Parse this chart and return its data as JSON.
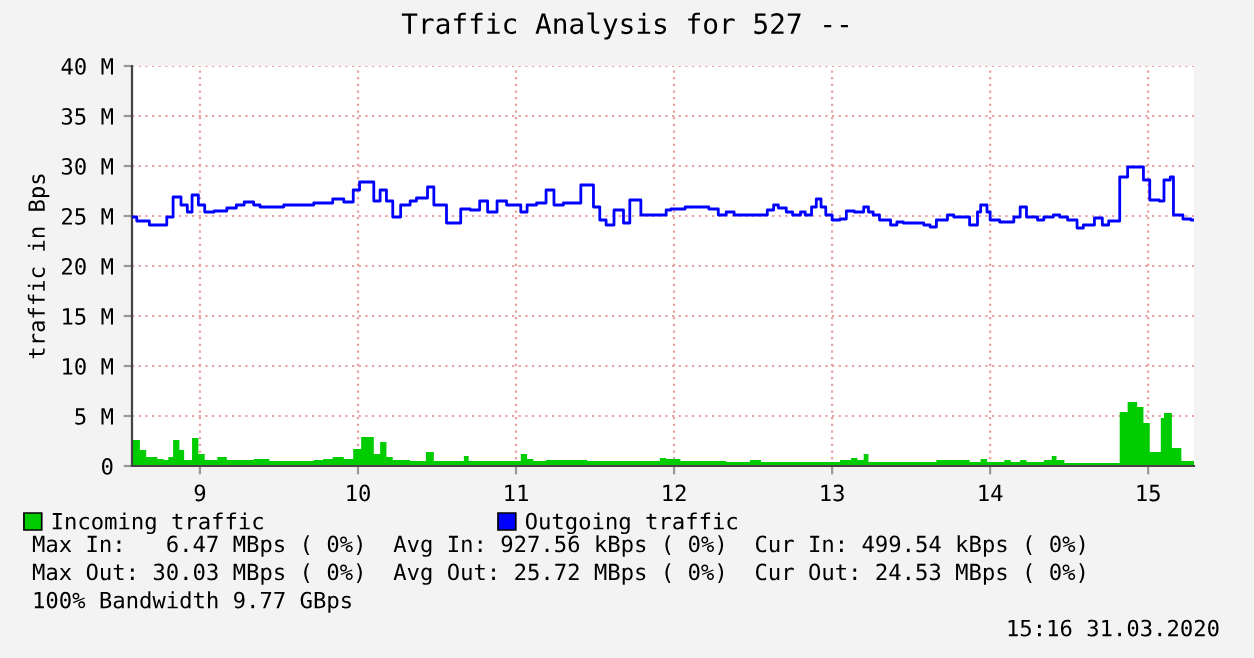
{
  "chart_data": {
    "type": "step",
    "title": "Traffic Analysis for 527 --",
    "ylabel": "traffic in Bps",
    "xlim": [
      8.57,
      15.29
    ],
    "xticks": [
      9,
      10,
      11,
      12,
      13,
      14,
      15
    ],
    "ylim": [
      0,
      40
    ],
    "yticks": [
      0,
      {
        "value": 5,
        "label": "5 M"
      },
      {
        "value": 10,
        "label": "10 M"
      },
      {
        "value": 15,
        "label": "15 M"
      },
      {
        "value": 20,
        "label": "20 M"
      },
      {
        "value": 25,
        "label": "25 M"
      },
      {
        "value": 30,
        "label": "30 M"
      },
      {
        "value": 35,
        "label": "35 M"
      },
      {
        "value": 40,
        "label": "40 M"
      }
    ],
    "grid": true,
    "legend": "bottom",
    "series": [
      {
        "name": "Incoming traffic",
        "type": "area",
        "color": "#00cc00",
        "x": [
          8.57,
          8.62,
          8.66,
          8.73,
          8.77,
          8.8,
          8.83,
          8.87,
          8.9,
          8.95,
          8.99,
          9.03,
          9.11,
          9.17,
          9.34,
          9.44,
          9.72,
          9.78,
          9.84,
          9.91,
          9.97,
          10.02,
          10.1,
          10.14,
          10.18,
          10.22,
          10.33,
          10.43,
          10.48,
          10.67,
          10.7,
          11.03,
          11.07,
          11.11,
          11.19,
          11.45,
          11.74,
          11.91,
          11.95,
          12.04,
          12.33,
          12.48,
          12.55,
          13.05,
          13.12,
          13.16,
          13.2,
          13.23,
          13.66,
          13.87,
          13.94,
          13.98,
          14.09,
          14.13,
          14.19,
          14.23,
          14.34,
          14.39,
          14.42,
          14.47,
          14.82,
          14.87,
          14.93,
          14.97,
          15.01,
          15.08,
          15.1,
          15.15,
          15.21,
          15.29
        ],
        "values": [
          2.6,
          1.6,
          0.9,
          0.7,
          0.6,
          0.9,
          2.6,
          1.6,
          0.6,
          2.8,
          1.2,
          0.6,
          0.9,
          0.6,
          0.7,
          0.5,
          0.6,
          0.7,
          0.9,
          0.7,
          1.7,
          2.9,
          1.2,
          2.4,
          0.9,
          0.6,
          0.5,
          1.4,
          0.5,
          1.0,
          0.5,
          1.2,
          0.7,
          0.5,
          0.6,
          0.5,
          0.5,
          0.8,
          0.7,
          0.5,
          0.4,
          0.6,
          0.4,
          0.6,
          0.8,
          0.6,
          1.2,
          0.4,
          0.6,
          0.4,
          0.7,
          0.4,
          0.6,
          0.4,
          0.6,
          0.4,
          0.6,
          1.0,
          0.6,
          0.3,
          5.4,
          6.4,
          5.9,
          4.3,
          1.4,
          4.8,
          5.3,
          1.8,
          0.5,
          0.5
        ]
      },
      {
        "name": "Outgoing traffic",
        "color": "#0000ff",
        "x": [
          8.57,
          8.6,
          8.68,
          8.79,
          8.83,
          8.88,
          8.92,
          8.95,
          8.99,
          9.03,
          9.09,
          9.17,
          9.23,
          9.28,
          9.34,
          9.38,
          9.53,
          9.72,
          9.84,
          9.91,
          9.97,
          10.01,
          10.1,
          10.14,
          10.18,
          10.22,
          10.27,
          10.33,
          10.37,
          10.44,
          10.48,
          10.56,
          10.65,
          10.71,
          10.77,
          10.82,
          10.88,
          10.94,
          11.03,
          11.07,
          11.13,
          11.19,
          11.24,
          11.3,
          11.41,
          11.49,
          11.53,
          11.57,
          11.62,
          11.68,
          11.72,
          11.79,
          11.95,
          11.98,
          12.07,
          12.22,
          12.28,
          12.33,
          12.38,
          12.59,
          12.63,
          12.66,
          12.71,
          12.75,
          12.8,
          12.83,
          12.87,
          12.9,
          12.93,
          12.96,
          13.0,
          13.05,
          13.09,
          13.14,
          13.2,
          13.23,
          13.26,
          13.3,
          13.37,
          13.41,
          13.45,
          13.58,
          13.62,
          13.66,
          13.73,
          13.77,
          13.87,
          13.92,
          13.94,
          13.98,
          14.0,
          14.06,
          14.15,
          14.19,
          14.23,
          14.3,
          14.34,
          14.4,
          14.44,
          14.49,
          14.55,
          14.59,
          14.66,
          14.71,
          14.75,
          14.82,
          14.87,
          14.97,
          15.01,
          15.07,
          15.1,
          15.14,
          15.16,
          15.22,
          15.27,
          15.29
        ],
        "values": [
          24.9,
          24.5,
          24.1,
          24.9,
          26.9,
          26.1,
          25.4,
          27.1,
          26.1,
          25.4,
          25.5,
          25.8,
          26.1,
          26.4,
          26.1,
          25.9,
          26.1,
          26.3,
          26.7,
          26.4,
          27.6,
          28.4,
          26.5,
          27.6,
          26.5,
          24.9,
          26.1,
          26.5,
          26.8,
          27.9,
          26.1,
          24.3,
          25.7,
          25.6,
          26.5,
          25.4,
          26.5,
          26.1,
          25.4,
          26.1,
          26.3,
          27.6,
          26.1,
          26.3,
          28.1,
          25.9,
          24.6,
          24.1,
          25.6,
          24.3,
          26.6,
          25.1,
          25.6,
          25.7,
          25.9,
          25.7,
          25.1,
          25.4,
          25.1,
          25.6,
          26.1,
          25.8,
          25.4,
          25.1,
          25.4,
          25.1,
          25.9,
          26.7,
          25.9,
          25.1,
          24.6,
          24.7,
          25.5,
          25.4,
          25.9,
          25.4,
          25.1,
          24.6,
          24.1,
          24.4,
          24.3,
          24.1,
          23.9,
          24.6,
          25.1,
          24.9,
          24.1,
          25.4,
          26.1,
          25.4,
          24.6,
          24.4,
          24.9,
          25.9,
          24.9,
          24.6,
          24.9,
          25.1,
          24.9,
          24.6,
          23.8,
          24.1,
          24.8,
          24.1,
          24.5,
          28.9,
          29.9,
          28.6,
          26.6,
          26.5,
          28.6,
          28.9,
          25.1,
          24.7,
          24.6,
          24.6
        ]
      }
    ],
    "annotations": [
      "Max In:   6.47 MBps ( 0%)  Avg In: 927.56 kBps ( 0%)  Cur In: 499.54 kBps ( 0%)",
      "Max Out: 30.03 MBps ( 0%)  Avg Out: 25.72 MBps ( 0%)  Cur Out: 24.53 MBps ( 0%)",
      "100% Bandwidth 9.77 GBps",
      "15:16 31.03.2020"
    ]
  }
}
